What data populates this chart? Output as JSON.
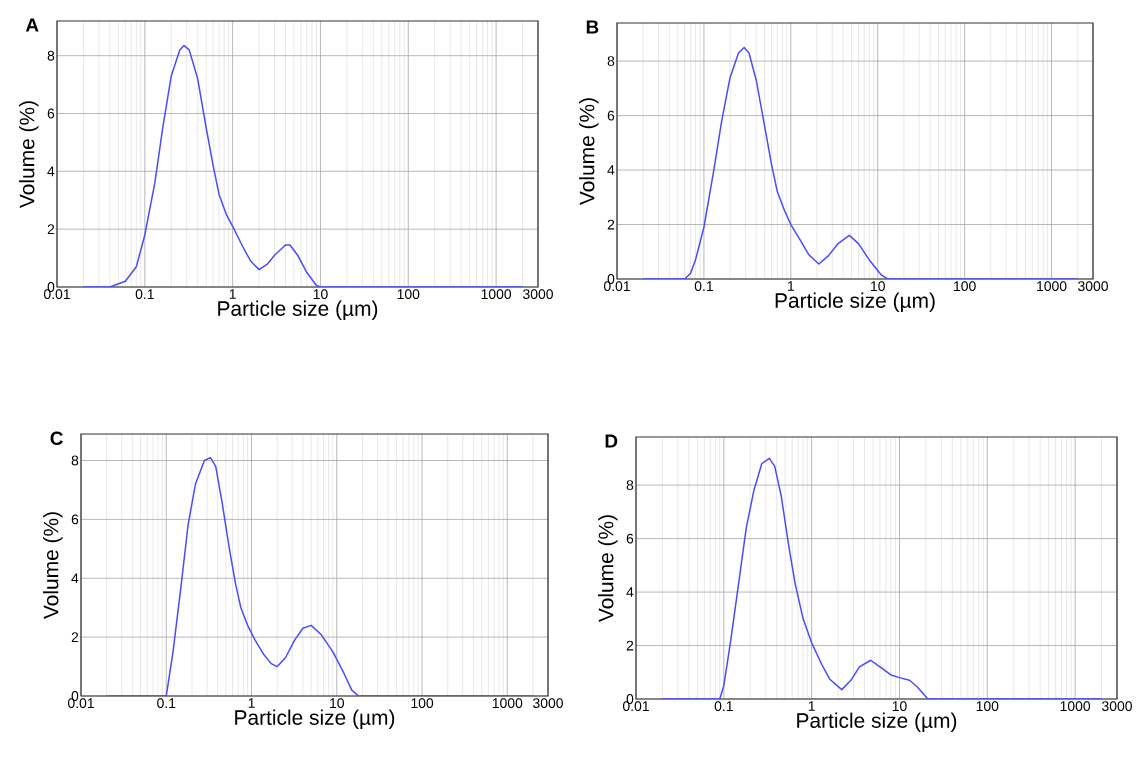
{
  "chart_data": [
    {
      "type": "line",
      "title": "A",
      "xlabel": "Particle size (µm)",
      "ylabel": "Volume (%)",
      "log": "x",
      "grid": true,
      "xlim": [
        0.01,
        3000
      ],
      "xticks": [
        0.01,
        0.1,
        1,
        10,
        100,
        1000,
        3000
      ],
      "ylim": [
        0,
        9.2
      ],
      "yticks": [
        0,
        2,
        4,
        6,
        8
      ],
      "series": [
        {
          "color": "#4a4aff",
          "x": [
            0.02,
            0.04,
            0.06,
            0.08,
            0.1,
            0.13,
            0.16,
            0.2,
            0.25,
            0.28,
            0.32,
            0.4,
            0.5,
            0.6,
            0.7,
            0.85,
            1,
            1.3,
            1.6,
            2,
            2.5,
            3,
            4,
            4.5,
            5.5,
            7,
            9,
            10,
            2000
          ],
          "values": [
            0,
            0,
            0.2,
            0.7,
            1.8,
            3.6,
            5.5,
            7.3,
            8.2,
            8.35,
            8.2,
            7.2,
            5.5,
            4.2,
            3.2,
            2.5,
            2.1,
            1.4,
            0.9,
            0.6,
            0.8,
            1.1,
            1.45,
            1.45,
            1.1,
            0.5,
            0.05,
            0,
            0
          ]
        }
      ]
    },
    {
      "type": "line",
      "title": "B",
      "xlabel": "Particle size (µm)",
      "ylabel": "Volume (%)",
      "log": "x",
      "grid": true,
      "xlim": [
        0.01,
        3000
      ],
      "xticks": [
        0.01,
        0.1,
        1,
        10,
        100,
        1000,
        3000
      ],
      "ylim": [
        0,
        9.4
      ],
      "yticks": [
        0,
        2,
        4,
        6,
        8
      ],
      "series": [
        {
          "color": "#4a4aff",
          "x": [
            0.02,
            0.06,
            0.07,
            0.08,
            0.1,
            0.13,
            0.16,
            0.2,
            0.25,
            0.29,
            0.33,
            0.4,
            0.5,
            0.6,
            0.7,
            0.85,
            1,
            1.3,
            1.6,
            2.1,
            2.7,
            3.5,
            4.7,
            6,
            8,
            11,
            13,
            2000
          ],
          "values": [
            0,
            0,
            0.2,
            0.7,
            1.9,
            4,
            5.8,
            7.4,
            8.3,
            8.5,
            8.3,
            7.3,
            5.6,
            4.2,
            3.2,
            2.5,
            2.0,
            1.4,
            0.9,
            0.55,
            0.85,
            1.3,
            1.6,
            1.3,
            0.7,
            0.15,
            0,
            0
          ]
        }
      ]
    },
    {
      "type": "line",
      "title": "C",
      "xlabel": "Particle size (µm)",
      "ylabel": "Volume (%)",
      "log": "x",
      "grid": true,
      "xlim": [
        0.01,
        3000
      ],
      "xticks": [
        0.01,
        0.1,
        1,
        10,
        100,
        1000,
        3000
      ],
      "ylim": [
        0,
        8.9
      ],
      "yticks": [
        0,
        2,
        4,
        6,
        8
      ],
      "series": [
        {
          "color": "#4a4aff",
          "x": [
            0.02,
            0.1,
            0.12,
            0.15,
            0.18,
            0.22,
            0.28,
            0.33,
            0.38,
            0.45,
            0.55,
            0.65,
            0.75,
            0.9,
            1.1,
            1.4,
            1.7,
            2,
            2.5,
            3.2,
            4,
            5,
            6.5,
            9,
            12,
            15,
            18,
            2000
          ],
          "values": [
            0,
            0,
            1.5,
            3.8,
            5.8,
            7.2,
            8.0,
            8.1,
            7.8,
            6.6,
            5.0,
            3.8,
            3.0,
            2.4,
            1.9,
            1.4,
            1.1,
            1.0,
            1.3,
            1.9,
            2.3,
            2.4,
            2.1,
            1.5,
            0.8,
            0.2,
            0,
            0
          ]
        }
      ]
    },
    {
      "type": "line",
      "title": "D",
      "xlabel": "Particle size (µm)",
      "ylabel": "Volume (%)",
      "log": "x",
      "grid": true,
      "xlim": [
        0.01,
        3000
      ],
      "xticks": [
        0.01,
        0.1,
        1,
        10,
        100,
        1000,
        3000
      ],
      "ylim": [
        0,
        9.8
      ],
      "yticks": [
        0,
        2,
        4,
        6,
        8
      ],
      "series": [
        {
          "color": "#4a4aff",
          "x": [
            0.02,
            0.09,
            0.1,
            0.12,
            0.15,
            0.18,
            0.22,
            0.27,
            0.33,
            0.38,
            0.45,
            0.55,
            0.65,
            0.8,
            1,
            1.3,
            1.6,
            2.2,
            2.8,
            3.5,
            4.7,
            6,
            8,
            10,
            13,
            16,
            21,
            2000
          ],
          "values": [
            0,
            0,
            0.5,
            2.2,
            4.5,
            6.4,
            7.8,
            8.8,
            9.0,
            8.7,
            7.6,
            5.7,
            4.3,
            3.0,
            2.1,
            1.3,
            0.75,
            0.35,
            0.7,
            1.2,
            1.45,
            1.2,
            0.9,
            0.8,
            0.7,
            0.45,
            0,
            0
          ]
        }
      ]
    }
  ]
}
